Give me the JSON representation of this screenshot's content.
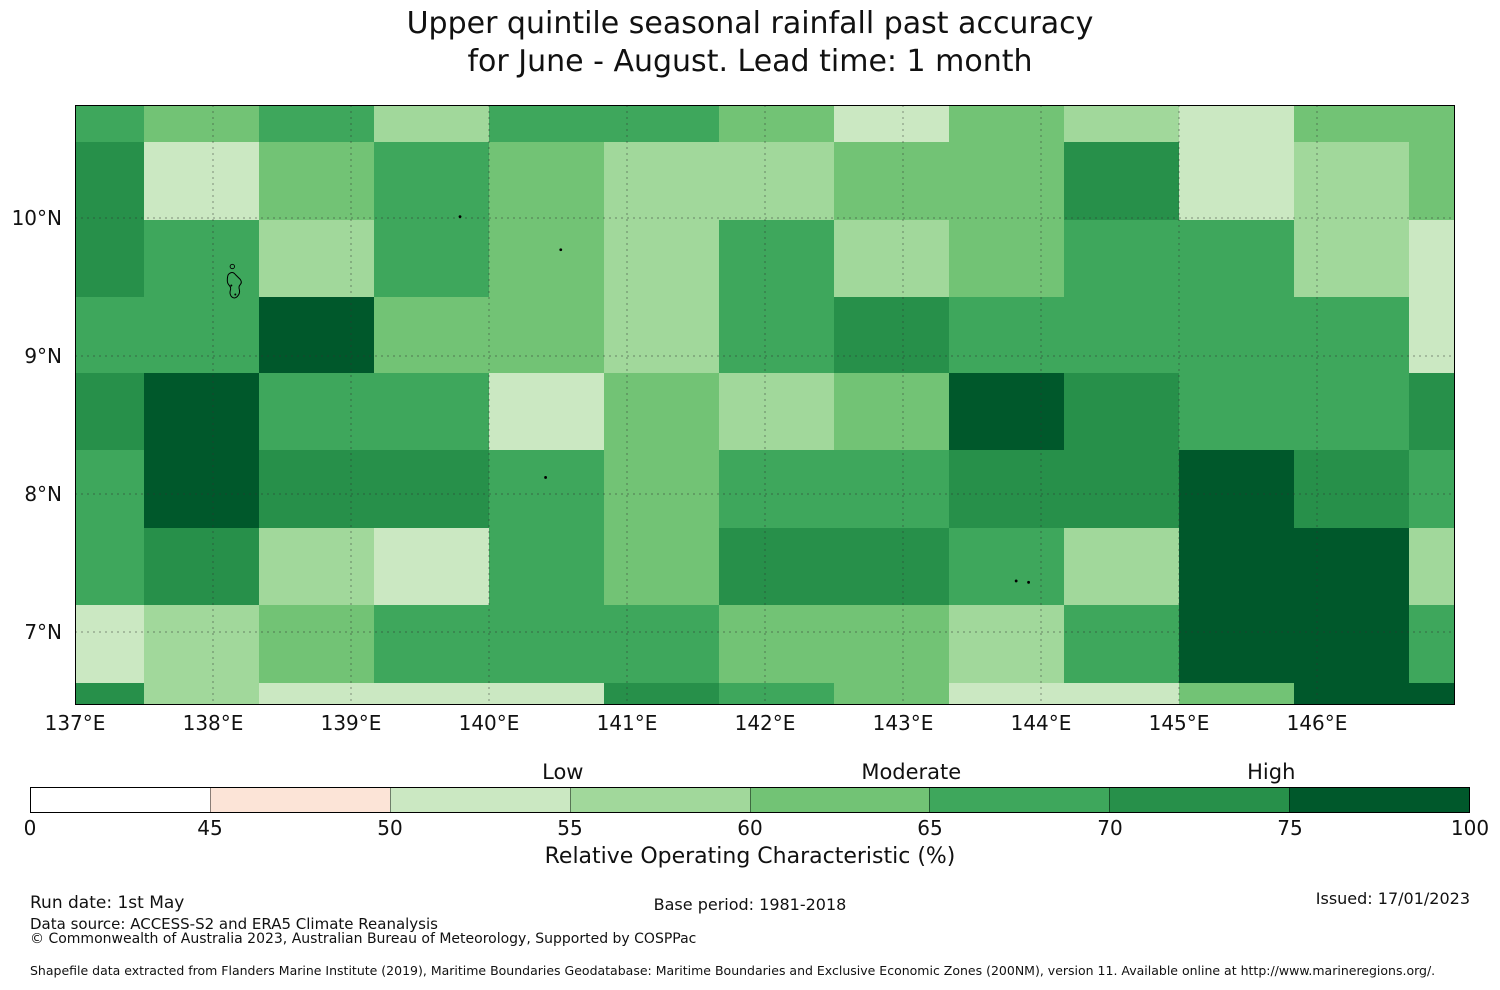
{
  "title": {
    "line1": "Upper quintile seasonal rainfall past accuracy",
    "line2": "for June - August. Lead time: 1 month"
  },
  "footer": {
    "run_date": "Run date: 1st May",
    "data_source": "Data source: ACCESS-S2 and ERA5 Climate Reanalysis",
    "copyright": "© Commonwealth of Australia 2023, Australian Bureau of Meteorology, Supported by COSPPac",
    "base_period": "Base period: 1981-2018",
    "issued": "Issued: 17/01/2023",
    "shapefile_note": "Shapefile data extracted from Flanders Marine Institute (2019), Maritime Boundaries Geodatabase: Maritime Boundaries and Exclusive Economic Zones (200NM), version 11. Available online at http://www.marineregions.org/."
  },
  "chart_data": {
    "type": "heatmap",
    "title": "Upper quintile seasonal rainfall past accuracy for June - August. Lead time: 1 month",
    "lon_range": [
      137.0,
      147.0
    ],
    "lat_range": [
      6.471,
      10.819
    ],
    "x_axis": {
      "ticks": [
        {
          "lon": 137,
          "label": "137°E"
        },
        {
          "lon": 138,
          "label": "138°E"
        },
        {
          "lon": 139,
          "label": "139°E"
        },
        {
          "lon": 140,
          "label": "140°E"
        },
        {
          "lon": 141,
          "label": "141°E"
        },
        {
          "lon": 142,
          "label": "142°E"
        },
        {
          "lon": 143,
          "label": "143°E"
        },
        {
          "lon": 144,
          "label": "144°E"
        },
        {
          "lon": 145,
          "label": "145°E"
        },
        {
          "lon": 146,
          "label": "146°E"
        }
      ]
    },
    "y_axis": {
      "ticks": [
        {
          "lat": 10,
          "label": "10°N"
        },
        {
          "lat": 9,
          "label": "9°N"
        },
        {
          "lat": 8,
          "label": "8°N"
        },
        {
          "lat": 7,
          "label": "7°N"
        }
      ]
    },
    "gridlines": {
      "lons": [
        138,
        139,
        140,
        141,
        142,
        143,
        144,
        145,
        146
      ],
      "lats": [
        7,
        8,
        9,
        10
      ],
      "style": "dashed"
    },
    "colorbar": {
      "label": "Relative Operating Characteristic (%)",
      "categories": [
        "Low",
        "Moderate",
        "High"
      ],
      "ticks": [
        0,
        45,
        50,
        55,
        60,
        65,
        70,
        75,
        100
      ],
      "bins": [
        {
          "range": "0-45",
          "color": "#ffffff"
        },
        {
          "range": "45-50",
          "color": "#fce4d7"
        },
        {
          "range": "50-55",
          "color": "#cbe8c2"
        },
        {
          "range": "55-60",
          "color": "#a1d89b"
        },
        {
          "range": "60-65",
          "color": "#72c375"
        },
        {
          "range": "65-70",
          "color": "#3ea75c"
        },
        {
          "range": "70-75",
          "color": "#27904a"
        },
        {
          "range": "75-100",
          "color": "#00582b"
        }
      ]
    },
    "grid": {
      "col_bounds_lon": [
        137.0,
        137.5,
        138.333,
        139.167,
        140.0,
        140.833,
        141.667,
        142.5,
        143.333,
        144.167,
        145.0,
        145.833,
        146.667,
        147.0
      ],
      "row_bounds_lat": [
        10.819,
        10.551,
        9.986,
        9.428,
        8.877,
        8.319,
        7.754,
        7.196,
        6.63,
        6.471
      ],
      "values": [
        [
          "65-70",
          "60-65",
          "65-70",
          "55-60",
          "65-70",
          "65-70",
          "60-65",
          "50-55",
          "60-65",
          "55-60",
          "50-55",
          "60-65",
          "60-65"
        ],
        [
          "70-75",
          "50-55",
          "60-65",
          "65-70",
          "60-65",
          "55-60",
          "55-60",
          "60-65",
          "60-65",
          "70-75",
          "50-55",
          "55-60",
          "60-65"
        ],
        [
          "70-75",
          "65-70",
          "55-60",
          "65-70",
          "60-65",
          "55-60",
          "65-70",
          "55-60",
          "60-65",
          "65-70",
          "65-70",
          "55-60",
          "50-55"
        ],
        [
          "65-70",
          "65-70",
          "75-100",
          "60-65",
          "60-65",
          "55-60",
          "65-70",
          "70-75",
          "65-70",
          "65-70",
          "65-70",
          "65-70",
          "50-55"
        ],
        [
          "70-75",
          "75-100",
          "65-70",
          "65-70",
          "50-55",
          "60-65",
          "55-60",
          "60-65",
          "75-100",
          "70-75",
          "65-70",
          "65-70",
          "70-75"
        ],
        [
          "65-70",
          "75-100",
          "70-75",
          "70-75",
          "65-70",
          "60-65",
          "65-70",
          "65-70",
          "70-75",
          "70-75",
          "75-100",
          "70-75",
          "65-70"
        ],
        [
          "65-70",
          "70-75",
          "55-60",
          "50-55",
          "65-70",
          "60-65",
          "70-75",
          "70-75",
          "65-70",
          "55-60",
          "75-100",
          "75-100",
          "55-60"
        ],
        [
          "50-55",
          "55-60",
          "60-65",
          "65-70",
          "65-70",
          "65-70",
          "60-65",
          "60-65",
          "55-60",
          "65-70",
          "75-100",
          "75-100",
          "65-70"
        ],
        [
          "70-75",
          "55-60",
          "50-55",
          "50-55",
          "50-55",
          "70-75",
          "65-70",
          "60-65",
          "50-55",
          "50-55",
          "60-65",
          "75-100",
          "75-100"
        ]
      ]
    },
    "islands": [
      {
        "type": "outline",
        "lon": 138.14,
        "lat": 9.54
      },
      {
        "type": "dot",
        "lon": 139.79,
        "lat": 10.01
      },
      {
        "type": "dot",
        "lon": 140.52,
        "lat": 9.77
      },
      {
        "type": "dot",
        "lon": 140.41,
        "lat": 8.12
      },
      {
        "type": "dot",
        "lon": 143.82,
        "lat": 7.37
      },
      {
        "type": "dot",
        "lon": 143.91,
        "lat": 7.36
      }
    ]
  }
}
